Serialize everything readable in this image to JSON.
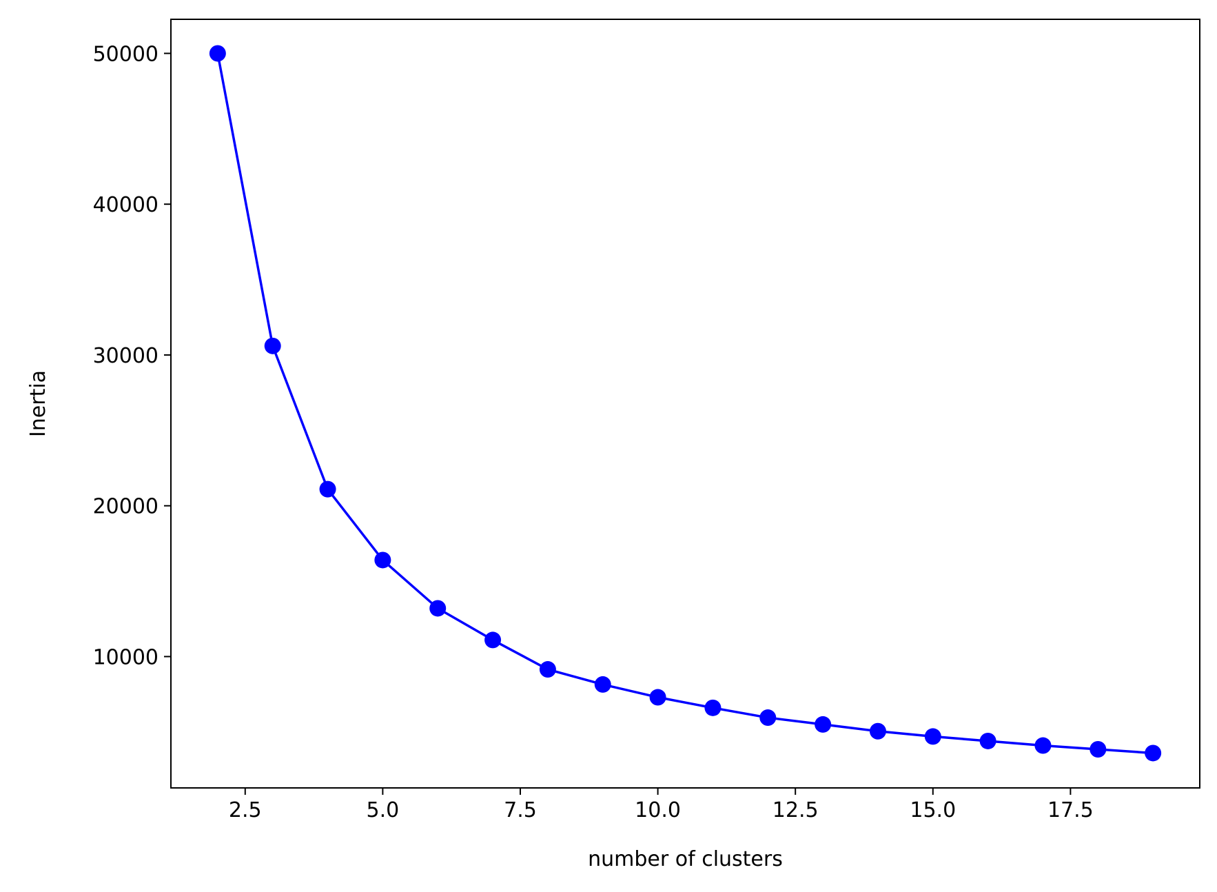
{
  "chart_data": {
    "type": "line",
    "title": "",
    "xlabel": "number of clusters",
    "ylabel": "Inertia",
    "xlim": [
      1.15,
      19.85
    ],
    "ylim": [
      1290,
      52260
    ],
    "xticks": [
      2.5,
      5.0,
      7.5,
      10.0,
      12.5,
      15.0,
      17.5
    ],
    "xtick_labels": [
      "2.5",
      "5.0",
      "7.5",
      "10.0",
      "12.5",
      "15.0",
      "17.5"
    ],
    "yticks": [
      10000,
      20000,
      30000,
      40000,
      50000
    ],
    "ytick_labels": [
      "10000",
      "20000",
      "30000",
      "40000",
      "50000"
    ],
    "grid": false,
    "series": [
      {
        "color": "#0000ff",
        "marker": "circle",
        "x": [
          2,
          3,
          4,
          5,
          6,
          7,
          8,
          9,
          10,
          11,
          12,
          13,
          14,
          15,
          16,
          17,
          18,
          19
        ],
        "y": [
          50000,
          30600,
          21100,
          16400,
          13200,
          11100,
          9150,
          8150,
          7300,
          6600,
          5950,
          5500,
          5050,
          4700,
          4400,
          4100,
          3850,
          3600
        ]
      }
    ]
  }
}
